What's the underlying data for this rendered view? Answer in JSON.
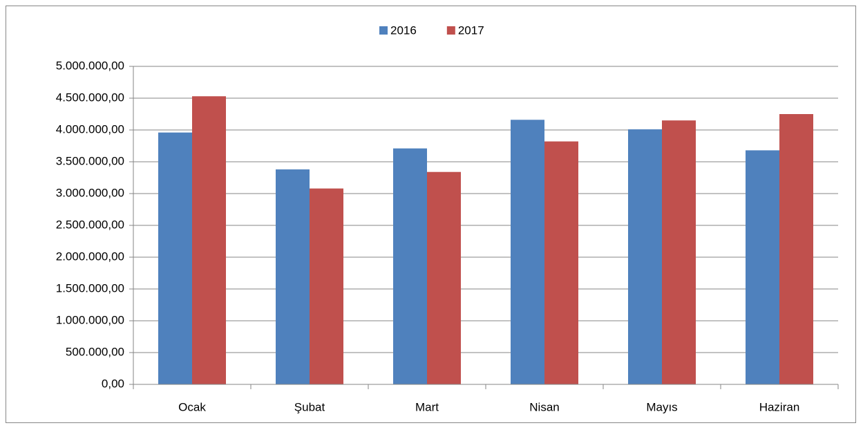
{
  "chart_data": {
    "type": "bar",
    "categories": [
      "Ocak",
      "Şubat",
      "Mart",
      "Nisan",
      "Mayıs",
      "Haziran"
    ],
    "series": [
      {
        "name": "2016",
        "color": "#4f81bd",
        "values": [
          3960000,
          3380000,
          3710000,
          4160000,
          4010000,
          3680000
        ]
      },
      {
        "name": "2017",
        "color": "#c0504d",
        "values": [
          4530000,
          3080000,
          3340000,
          3820000,
          4150000,
          4250000
        ]
      }
    ],
    "ylim": [
      0,
      5000000
    ],
    "yticks": [
      {
        "value": 0,
        "label": "0,00"
      },
      {
        "value": 500000,
        "label": "500.000,00"
      },
      {
        "value": 1000000,
        "label": "1.000.000,00"
      },
      {
        "value": 1500000,
        "label": "1.500.000,00"
      },
      {
        "value": 2000000,
        "label": "2.000.000,00"
      },
      {
        "value": 2500000,
        "label": "2.500.000,00"
      },
      {
        "value": 3000000,
        "label": "3.000.000,00"
      },
      {
        "value": 3500000,
        "label": "3.500.000,00"
      },
      {
        "value": 4000000,
        "label": "4.000.000,00"
      },
      {
        "value": 4500000,
        "label": "4.500.000,00"
      },
      {
        "value": 5000000,
        "label": "5.000.000,00"
      }
    ],
    "grid": true,
    "legend": "top"
  }
}
